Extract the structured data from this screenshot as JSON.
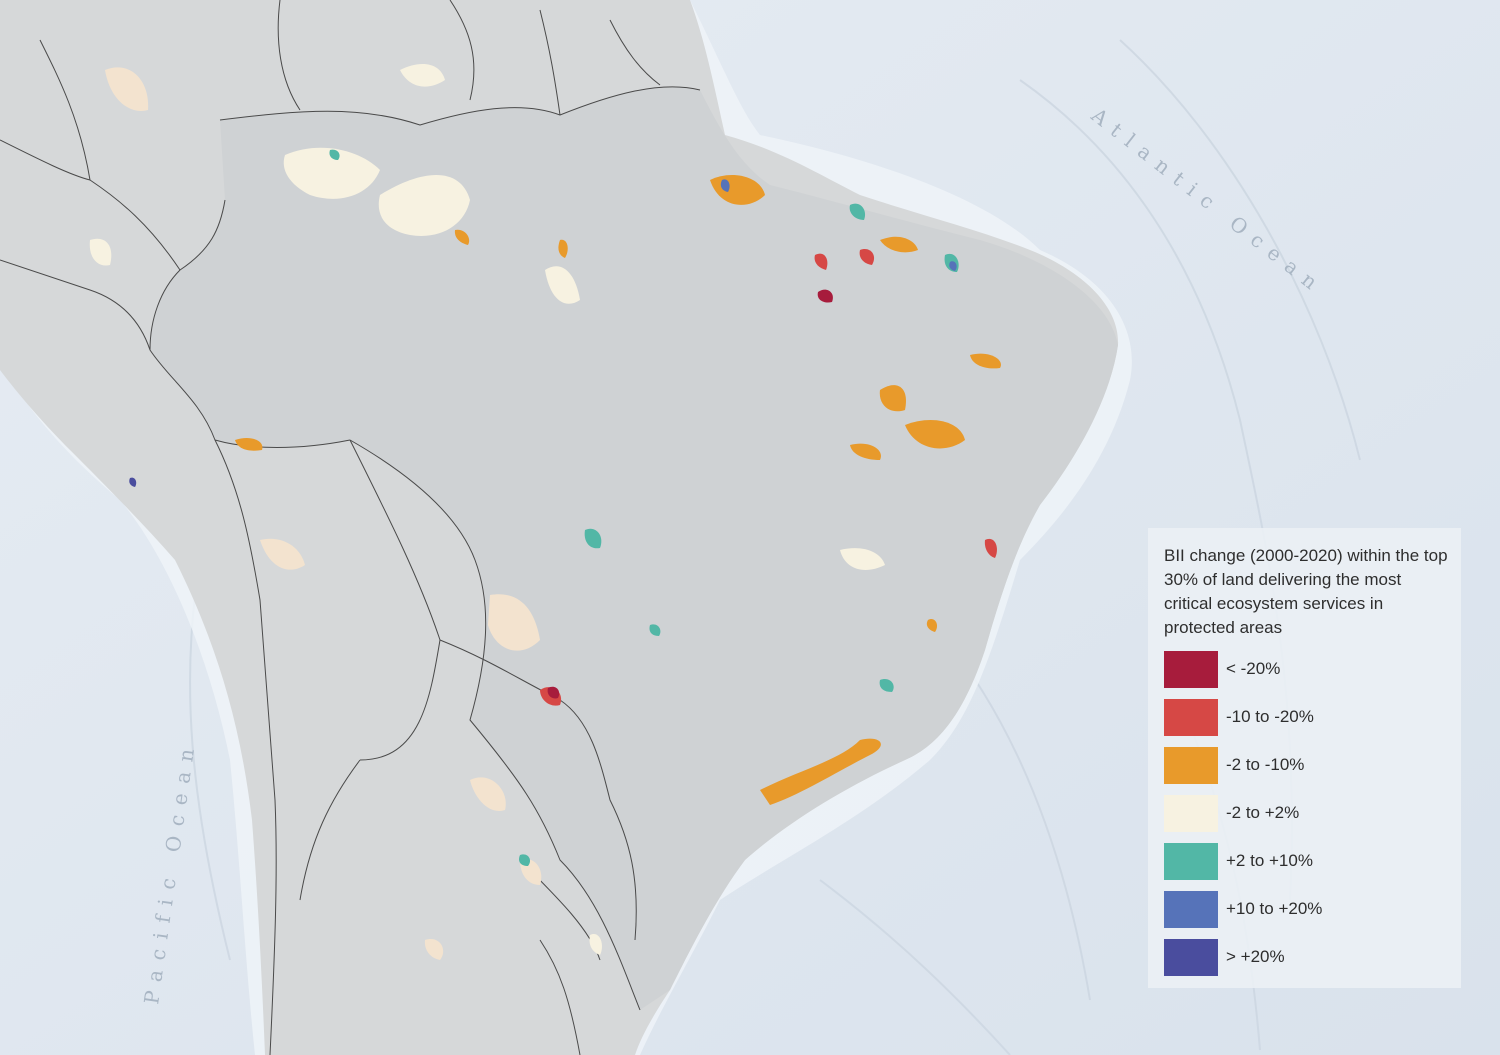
{
  "map": {
    "ocean_labels": {
      "atlantic": "Atlantic Ocean",
      "pacific": "Pacific Ocean"
    },
    "colors": {
      "ocean": "#dfe7f0",
      "land": "#d6d8d9",
      "land_focus": "#cfd2d4",
      "border": "#4a4a4a"
    }
  },
  "legend": {
    "title": "BII change (2000-2020) within the top 30% of land delivering the most critical ecosystem services in protected areas",
    "items": [
      {
        "label": "< -20%",
        "color": "#a71c3c"
      },
      {
        "label": "-10 to -20%",
        "color": "#d64845"
      },
      {
        "label": "-2 to -10%",
        "color": "#e89a2b"
      },
      {
        "label": "-2 to +2%",
        "color": "#f7f2e1"
      },
      {
        "label": "+2 to +10%",
        "color": "#52b7a6"
      },
      {
        "label": "+10 to +20%",
        "color": "#5673b9"
      },
      {
        "label": "> +20%",
        "color": "#4a4d9e"
      }
    ]
  }
}
